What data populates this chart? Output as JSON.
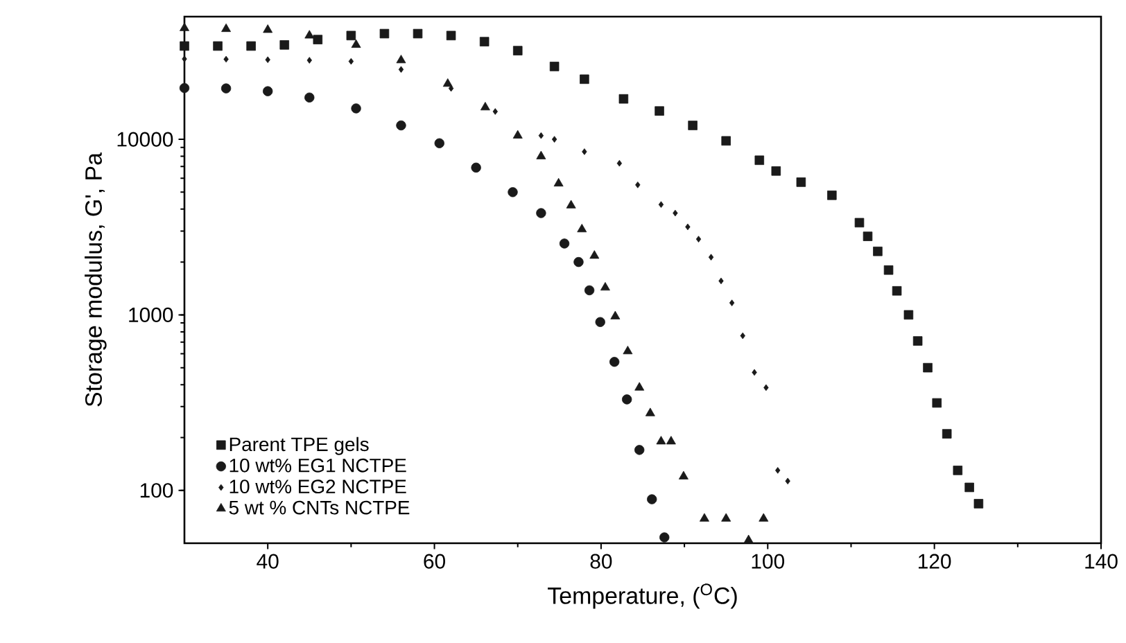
{
  "chart_data": {
    "type": "scatter",
    "xlabel": "Temperature, ($^{O}$C)",
    "ylabel": "Storage modulus, G', Pa",
    "log": "y",
    "xlim": [
      30,
      140
    ],
    "xticks": [
      40,
      60,
      80,
      100,
      120,
      140
    ],
    "ylim": [
      50,
      50000
    ],
    "yticks": [
      100,
      1000,
      10000
    ],
    "legend": "bottom left",
    "grid": false,
    "series": [
      {
        "name": "Parent TPE  gels",
        "color": "#1a1a1a",
        "marker": "square",
        "x": [
          30,
          34,
          38,
          42,
          46,
          50,
          54,
          58,
          62,
          66,
          70,
          74.4,
          78,
          82.7,
          87,
          91,
          95,
          99,
          101,
          104,
          107.7,
          111,
          112,
          113.2,
          114.5,
          115.5,
          116.9,
          118,
          119.2,
          120.3,
          121.5,
          122.8,
          124.2,
          125.3
        ],
        "values": [
          34000,
          34000,
          34000,
          34500,
          37000,
          39000,
          40000,
          40000,
          39000,
          36000,
          32000,
          26000,
          22000,
          17000,
          14500,
          12000,
          9800,
          7600,
          6600,
          5700,
          4800,
          3350,
          2800,
          2300,
          1800,
          1370,
          1000,
          710,
          500,
          315,
          210,
          130,
          104,
          84
        ]
      },
      {
        "name": "10 wt% EG1 NCTPE",
        "color": "#1a1a1a",
        "marker": "circle",
        "x": [
          30,
          35,
          40,
          45,
          50.6,
          56,
          60.6,
          65,
          69.4,
          72.8,
          75.6,
          77.3,
          78.6,
          79.9,
          81.6,
          83.1,
          84.6,
          86.1,
          87.6
        ],
        "values": [
          19600,
          19500,
          18800,
          17300,
          15000,
          12000,
          9500,
          6900,
          5000,
          3800,
          2550,
          2000,
          1380,
          910,
          540,
          330,
          170,
          89,
          54
        ]
      },
      {
        "name": "10 wt% EG2 NCTPE",
        "color": "#1a1a1a",
        "marker": "diamond",
        "x": [
          30,
          35,
          40,
          45,
          50,
          56,
          62,
          67.3,
          72.8,
          74.4,
          78,
          82.2,
          84.4,
          87.2,
          88.9,
          90.4,
          91.7,
          93.2,
          94.4,
          95.7,
          97,
          98.4,
          99.8,
          101.2,
          102.4
        ],
        "values": [
          28700,
          28600,
          28400,
          28200,
          27800,
          25000,
          19500,
          14400,
          10500,
          10000,
          8500,
          7300,
          5500,
          4250,
          3800,
          3170,
          2700,
          2130,
          1560,
          1170,
          760,
          470,
          385,
          130,
          113
        ]
      },
      {
        "name": "5 wt % CNTs NCTPE",
        "color": "#1a1a1a",
        "marker": "triangle",
        "x": [
          30,
          35,
          40,
          45,
          50.6,
          56,
          61.6,
          66.1,
          70,
          72.8,
          74.9,
          76.4,
          77.7,
          79.2,
          80.5,
          81.7,
          83.2,
          84.6,
          85.9,
          87.2,
          88.4,
          89.9,
          92.4,
          95,
          97.7,
          99.5
        ],
        "values": [
          43000,
          42500,
          42000,
          39000,
          34500,
          28200,
          20700,
          15200,
          10500,
          8000,
          5600,
          4200,
          3070,
          2170,
          1430,
          980,
          620,
          385,
          275,
          190,
          190,
          120,
          69,
          69,
          52,
          69
        ]
      }
    ]
  }
}
